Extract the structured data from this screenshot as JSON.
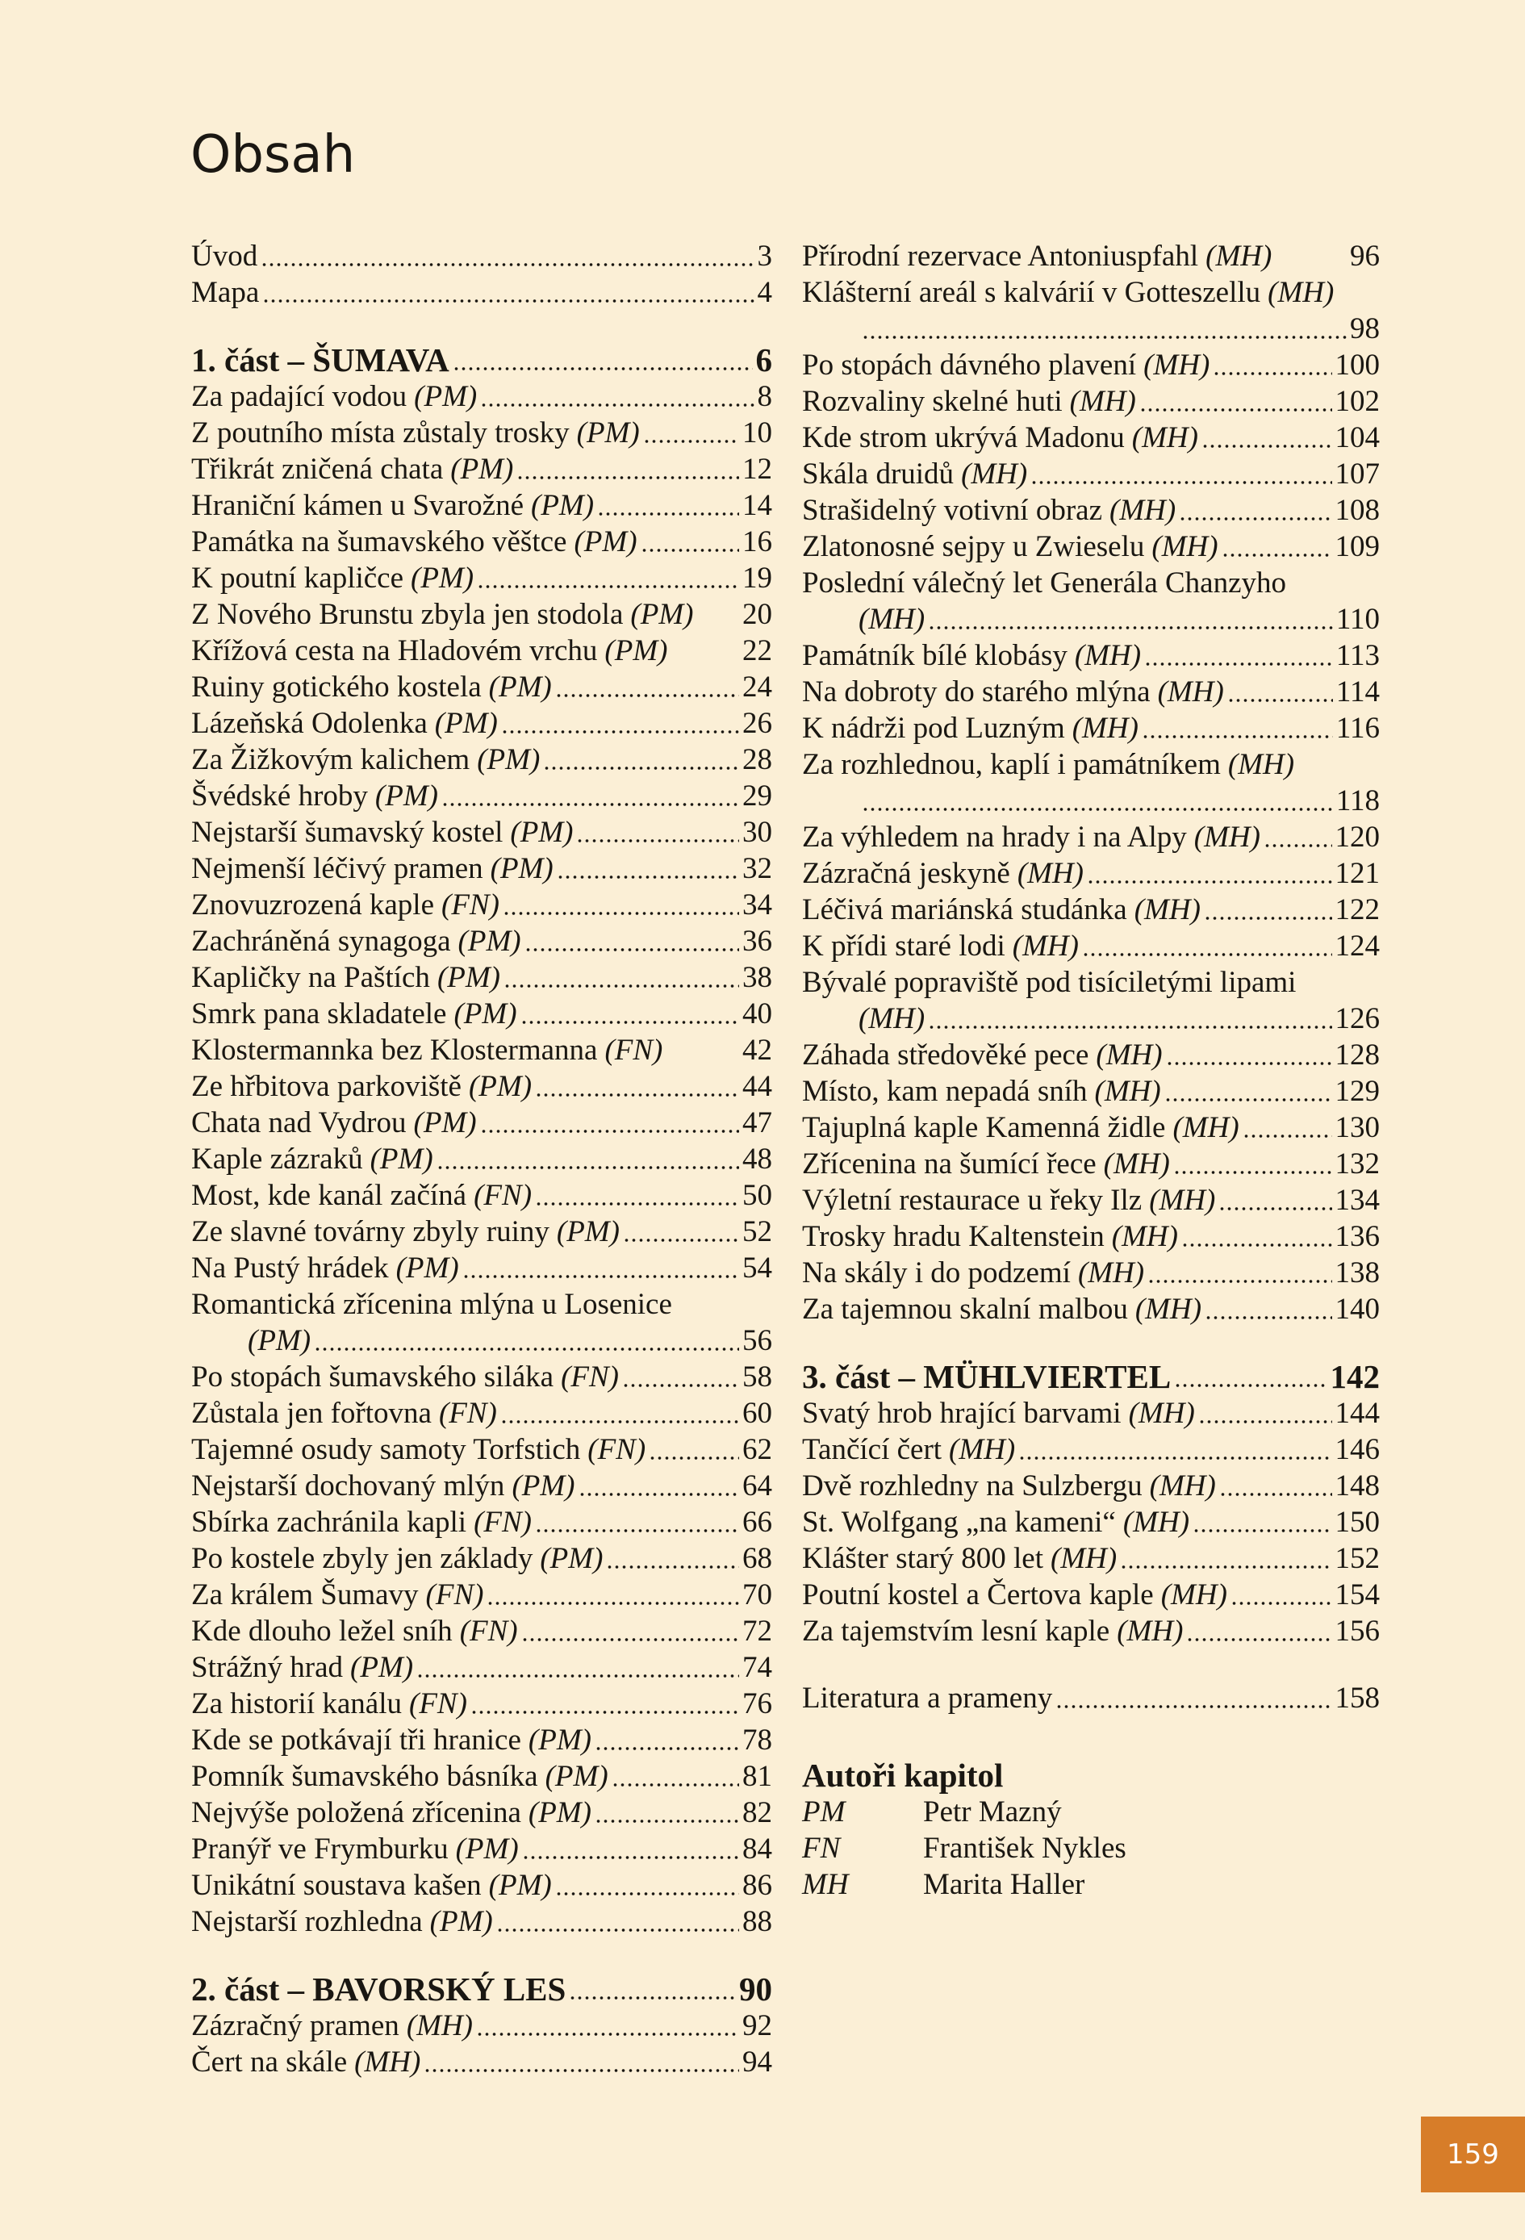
{
  "title": "Obsah",
  "colors": {
    "background": "#fbefd6",
    "accent": "#d77d29"
  },
  "left": [
    {
      "entries": [
        {
          "title": "Úvod",
          "page": "3"
        },
        {
          "title": "Mapa",
          "page": "4"
        }
      ]
    },
    {
      "heading": {
        "title": "1. část – ŠUMAVA",
        "page": "6"
      },
      "entries": [
        {
          "title": "Za padající vodou",
          "author": "(PM)",
          "page": "8"
        },
        {
          "title": "Z poutního místa zůstaly trosky",
          "author": "(PM)",
          "page": "10"
        },
        {
          "title": "Třikrát zničená chata",
          "author": "(PM)",
          "page": "12"
        },
        {
          "title": "Hraniční kámen u Svarožné",
          "author": "(PM)",
          "page": "14"
        },
        {
          "title": "Památka na šumavského věštce",
          "author": "(PM)",
          "page": "16"
        },
        {
          "title": "K poutní kapličce",
          "author": "(PM)",
          "page": "19"
        },
        {
          "title": "Z Nového Brunstu zbyla jen stodola",
          "author": "(PM)",
          "page": "20",
          "noleader": true
        },
        {
          "title": "Křížová cesta na Hladovém vrchu",
          "author": "(PM)",
          "page": "22",
          "noleader": true
        },
        {
          "title": "Ruiny gotického kostela",
          "author": "(PM)",
          "page": "24"
        },
        {
          "title": "Lázeňská Odolenka",
          "author": "(PM)",
          "page": "26"
        },
        {
          "title": "Za Žižkovým kalichem",
          "author": "(PM)",
          "page": "28"
        },
        {
          "title": "Švédské hroby",
          "author": "(PM)",
          "page": "29"
        },
        {
          "title": "Nejstarší šumavský kostel",
          "author": "(PM)",
          "page": "30"
        },
        {
          "title": "Nejmenší léčivý pramen",
          "author": "(PM)",
          "page": "32"
        },
        {
          "title": "Znovuzrozená kaple",
          "author": "(FN)",
          "page": "34"
        },
        {
          "title": "Zachráněná synagoga",
          "author": "(PM)",
          "page": "36"
        },
        {
          "title": "Kapličky na Paštích",
          "author": "(PM)",
          "page": "38"
        },
        {
          "title": "Smrk pana skladatele",
          "author": "(PM)",
          "page": "40"
        },
        {
          "title": "Klostermannka bez Klostermanna",
          "author": "(FN)",
          "page": "42",
          "noleader": true
        },
        {
          "title": "Ze hřbitova parkoviště",
          "author": "(PM)",
          "page": "44"
        },
        {
          "title": "Chata nad Vydrou",
          "author": "(PM)",
          "page": "47"
        },
        {
          "title": "Kaple zázraků",
          "author": "(PM)",
          "page": "48"
        },
        {
          "title": "Most, kde kanál začíná",
          "author": "(FN)",
          "page": "50"
        },
        {
          "title": "Ze slavné továrny zbyly ruiny",
          "author": "(PM)",
          "page": "52"
        },
        {
          "title": "Na Pustý hrádek",
          "author": "(PM)",
          "page": "54"
        },
        {
          "title": "Romantická zřícenina mlýna u Losenice",
          "author": "(PM)",
          "page": "56",
          "wrap": "before-author"
        },
        {
          "title": "Po stopách šumavského siláka",
          "author": "(FN)",
          "page": "58"
        },
        {
          "title": "Zůstala jen fořtovna",
          "author": "(FN)",
          "page": "60"
        },
        {
          "title": "Tajemné osudy samoty Torfstich",
          "author": "(FN)",
          "page": "62"
        },
        {
          "title": "Nejstarší dochovaný mlýn",
          "author": "(PM)",
          "page": "64"
        },
        {
          "title": "Sbírka zachránila kapli",
          "author": "(FN)",
          "page": "66"
        },
        {
          "title": "Po kostele zbyly jen základy",
          "author": "(PM)",
          "page": "68"
        },
        {
          "title": "Za králem Šumavy",
          "author": "(FN)",
          "page": "70"
        },
        {
          "title": "Kde dlouho ležel sníh",
          "author": "(FN)",
          "page": "72"
        },
        {
          "title": "Strážný hrad",
          "author": "(PM)",
          "page": "74"
        },
        {
          "title": "Za historií kanálu",
          "author": "(FN)",
          "page": "76"
        },
        {
          "title": "Kde se potkávají tři hranice",
          "author": "(PM)",
          "page": "78"
        },
        {
          "title": "Pomník šumavského básníka",
          "author": "(PM)",
          "page": "81"
        },
        {
          "title": "Nejvýše položená zřícenina",
          "author": "(PM)",
          "page": "82"
        },
        {
          "title": "Pranýř ve Frymburku",
          "author": "(PM)",
          "page": "84"
        },
        {
          "title": "Unikátní soustava kašen",
          "author": "(PM)",
          "page": "86"
        },
        {
          "title": "Nejstarší rozhledna",
          "author": "(PM)",
          "page": "88"
        }
      ]
    },
    {
      "heading": {
        "title": "2. část – BAVORSKÝ LES",
        "page": "90"
      },
      "entries": [
        {
          "title": "Zázračný pramen",
          "author": "(MH)",
          "page": "92"
        },
        {
          "title": "Čert na skále",
          "author": "(MH)",
          "page": "94"
        }
      ]
    }
  ],
  "right": [
    {
      "entries": [
        {
          "title": "Přírodní rezervace Antoniuspfahl",
          "author": "(MH)",
          "page": "96",
          "noleader": true
        },
        {
          "title": "Klášterní areál s kalvárií v Gotteszellu",
          "author": "(MH)",
          "page": "98",
          "wrap": "after-author"
        },
        {
          "title": "Po stopách dávného plavení",
          "author": "(MH)",
          "page": "100"
        },
        {
          "title": "Rozvaliny skelné huti",
          "author": "(MH)",
          "page": "102"
        },
        {
          "title": "Kde strom ukrývá Madonu",
          "author": "(MH)",
          "page": "104"
        },
        {
          "title": "Skála druidů",
          "author": "(MH)",
          "page": "107"
        },
        {
          "title": "Strašidelný votivní obraz",
          "author": "(MH)",
          "page": "108"
        },
        {
          "title": "Zlatonosné sejpy u Zwieselu",
          "author": "(MH)",
          "page": "109"
        },
        {
          "title": "Poslední válečný let Generála Chanzyho",
          "author": "(MH)",
          "page": "110",
          "wrap": "before-author"
        },
        {
          "title": "Památník bílé klobásy",
          "author": "(MH)",
          "page": "113"
        },
        {
          "title": "Na dobroty do starého mlýna",
          "author": "(MH)",
          "page": "114"
        },
        {
          "title": "K nádrži pod Luzným",
          "author": "(MH)",
          "page": "116"
        },
        {
          "title": "Za rozhlednou, kaplí i památníkem",
          "author": "(MH)",
          "page": "118",
          "wrap": "after-author"
        },
        {
          "title": "Za výhledem na hrady i na Alpy",
          "author": "(MH)",
          "page": "120"
        },
        {
          "title": "Zázračná jeskyně",
          "author": "(MH)",
          "page": "121"
        },
        {
          "title": "Léčivá mariánská studánka",
          "author": "(MH)",
          "page": "122"
        },
        {
          "title": "K přídi staré lodi",
          "author": "(MH)",
          "page": "124"
        },
        {
          "title": "Bývalé popraviště pod tisíciletými lipami",
          "author": "(MH)",
          "page": "126",
          "wrap": "before-author"
        },
        {
          "title": "Záhada středověké pece",
          "author": "(MH)",
          "page": "128"
        },
        {
          "title": "Místo, kam nepadá sníh",
          "author": "(MH)",
          "page": "129"
        },
        {
          "title": "Tajuplná kaple Kamenná židle",
          "author": "(MH)",
          "page": "130"
        },
        {
          "title": "Zřícenina na šumící řece",
          "author": "(MH)",
          "page": "132"
        },
        {
          "title": "Výletní restaurace u řeky Ilz",
          "author": "(MH)",
          "page": "134"
        },
        {
          "title": "Trosky hradu Kaltenstein",
          "author": "(MH)",
          "page": "136"
        },
        {
          "title": "Na skály i do podzemí",
          "author": "(MH)",
          "page": "138"
        },
        {
          "title": "Za tajemnou skalní malbou",
          "author": "(MH)",
          "page": "140"
        }
      ]
    },
    {
      "heading": {
        "title": "3. část – MÜHLVIERTEL",
        "page": "142"
      },
      "entries": [
        {
          "title": "Svatý hrob hrající barvami",
          "author": "(MH)",
          "page": "144"
        },
        {
          "title": "Tančící čert",
          "author": "(MH)",
          "page": "146"
        },
        {
          "title": "Dvě rozhledny na Sulzbergu",
          "author": "(MH)",
          "page": "148"
        },
        {
          "title": "St. Wolfgang „na kameni“",
          "author": "(MH)",
          "page": "150"
        },
        {
          "title": "Klášter starý 800 let",
          "author": "(MH)",
          "page": "152"
        },
        {
          "title": "Poutní kostel a Čertova kaple",
          "author": "(MH)",
          "page": "154"
        },
        {
          "title": "Za tajemstvím lesní kaple",
          "author": "(MH)",
          "page": "156"
        }
      ]
    },
    {
      "entries": [
        {
          "title": "Literatura a prameny",
          "page": "158"
        }
      ]
    }
  ],
  "authors": {
    "heading": "Autoři kapitol",
    "items": [
      {
        "abbr": "PM",
        "name": "Petr Mazný"
      },
      {
        "abbr": "FN",
        "name": "František Nykles"
      },
      {
        "abbr": "MH",
        "name": "Marita Haller"
      }
    ]
  },
  "page_number": "159"
}
